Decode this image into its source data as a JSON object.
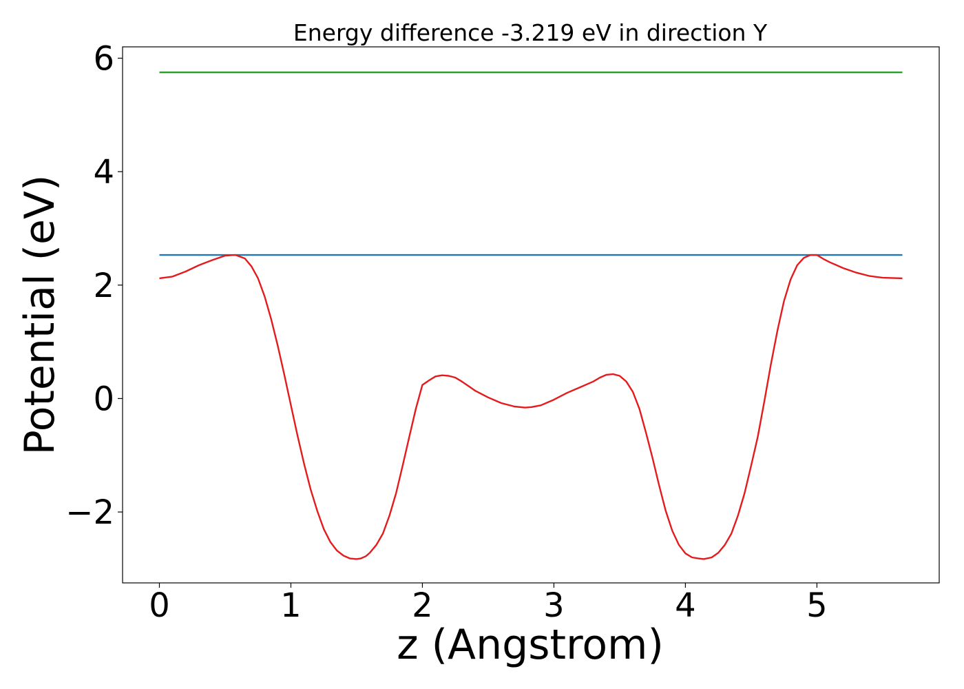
{
  "chart_data": {
    "type": "line",
    "title": "Energy difference -3.219 eV in direction Y",
    "xlabel": "z (Angstrom)",
    "ylabel": "Potential (eV)",
    "xlim": [
      -0.28,
      5.93
    ],
    "ylim": [
      -3.25,
      6.2
    ],
    "xticks": [
      0,
      1,
      2,
      3,
      4,
      5
    ],
    "xtick_labels": [
      "0",
      "1",
      "2",
      "3",
      "4",
      "5"
    ],
    "yticks": [
      -2,
      0,
      2,
      4,
      6
    ],
    "ytick_labels": [
      "−2",
      "0",
      "2",
      "4",
      "6"
    ],
    "grid": false,
    "series": [
      {
        "color": "#2ca02c",
        "x": [
          0,
          5.65
        ],
        "y": [
          5.75,
          5.75
        ]
      },
      {
        "color": "#1f77b4",
        "x": [
          0,
          5.65
        ],
        "y": [
          2.53,
          2.53
        ]
      },
      {
        "color": "#e41a1c",
        "x": [
          0.0,
          0.1,
          0.2,
          0.3,
          0.4,
          0.5,
          0.58,
          0.65,
          0.7,
          0.75,
          0.8,
          0.85,
          0.9,
          0.95,
          1.0,
          1.05,
          1.1,
          1.15,
          1.2,
          1.25,
          1.3,
          1.35,
          1.4,
          1.45,
          1.5,
          1.53,
          1.57,
          1.6,
          1.65,
          1.7,
          1.75,
          1.8,
          1.85,
          1.9,
          1.95,
          2.0,
          2.05,
          2.1,
          2.15,
          2.2,
          2.25,
          2.3,
          2.35,
          2.4,
          2.5,
          2.6,
          2.7,
          2.78,
          2.83,
          2.9,
          3.0,
          3.1,
          3.2,
          3.3,
          3.35,
          3.4,
          3.45,
          3.5,
          3.55,
          3.6,
          3.65,
          3.7,
          3.75,
          3.8,
          3.85,
          3.9,
          3.95,
          4.0,
          4.05,
          4.1,
          4.14,
          4.2,
          4.25,
          4.3,
          4.35,
          4.4,
          4.45,
          4.5,
          4.55,
          4.6,
          4.65,
          4.7,
          4.75,
          4.8,
          4.85,
          4.9,
          4.95,
          5.0,
          5.05,
          5.1,
          5.2,
          5.3,
          5.4,
          5.5,
          5.65
        ],
        "y": [
          2.12,
          2.15,
          2.24,
          2.35,
          2.44,
          2.52,
          2.53,
          2.47,
          2.33,
          2.12,
          1.8,
          1.4,
          0.93,
          0.42,
          -0.12,
          -0.65,
          -1.15,
          -1.6,
          -1.98,
          -2.3,
          -2.53,
          -2.68,
          -2.77,
          -2.82,
          -2.83,
          -2.82,
          -2.78,
          -2.72,
          -2.58,
          -2.38,
          -2.06,
          -1.67,
          -1.18,
          -0.68,
          -0.18,
          0.24,
          0.32,
          0.39,
          0.41,
          0.4,
          0.37,
          0.3,
          0.22,
          0.14,
          0.02,
          -0.08,
          -0.14,
          -0.16,
          -0.15,
          -0.12,
          -0.02,
          0.1,
          0.2,
          0.3,
          0.37,
          0.42,
          0.43,
          0.4,
          0.3,
          0.12,
          -0.18,
          -0.6,
          -1.05,
          -1.53,
          -1.98,
          -2.33,
          -2.58,
          -2.73,
          -2.8,
          -2.82,
          -2.83,
          -2.8,
          -2.72,
          -2.58,
          -2.38,
          -2.06,
          -1.67,
          -1.18,
          -0.68,
          -0.05,
          0.6,
          1.2,
          1.72,
          2.1,
          2.35,
          2.48,
          2.53,
          2.53,
          2.46,
          2.4,
          2.3,
          2.22,
          2.16,
          2.13,
          2.12
        ]
      }
    ]
  }
}
